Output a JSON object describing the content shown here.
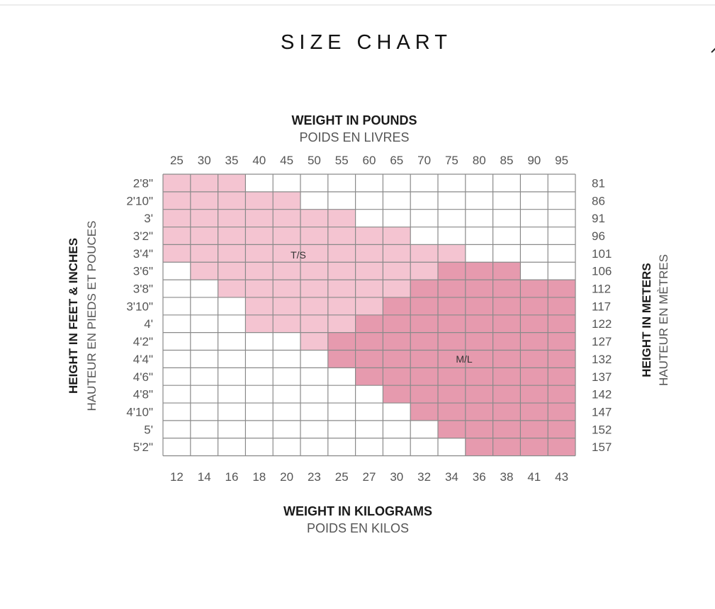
{
  "header": {
    "title": "SIZE CHART"
  },
  "chart_data": {
    "type": "heatmap",
    "title": "SIZE CHART",
    "top_axis": {
      "label": "WEIGHT IN POUNDS",
      "sublabel": "POIDS EN LIVRES",
      "ticks": [
        "25",
        "30",
        "35",
        "40",
        "45",
        "50",
        "55",
        "60",
        "65",
        "70",
        "75",
        "80",
        "85",
        "90",
        "95"
      ]
    },
    "bottom_axis": {
      "label": "WEIGHT IN KILOGRAMS",
      "sublabel": "POIDS EN KILOS",
      "ticks": [
        "12",
        "14",
        "16",
        "18",
        "20",
        "23",
        "25",
        "27",
        "30",
        "32",
        "34",
        "36",
        "38",
        "41",
        "43"
      ]
    },
    "left_axis": {
      "label": "HEIGHT IN FEET & INCHES",
      "sublabel": "HAUTEUR EN PIEDS ET POUCES",
      "ticks": [
        "2'8\"",
        "2'10\"",
        "3'",
        "3'2\"",
        "3'4\"",
        "3'6\"",
        "3'8\"",
        "3'10\"",
        "4'",
        "4'2\"",
        "4'4\"",
        "4'6\"",
        "4'8\"",
        "4'10\"",
        "5'",
        "5'2\""
      ]
    },
    "right_axis": {
      "label": "HEIGHT IN METERS",
      "sublabel": "HAUTEUR EN MÈTRES",
      "ticks": [
        "81",
        "86",
        "91",
        "96",
        "101",
        "106",
        "112",
        "117",
        "122",
        "127",
        "132",
        "137",
        "142",
        "147",
        "152",
        "157"
      ]
    },
    "sizes": [
      {
        "label": "T/S",
        "color": "#f4c4d1"
      },
      {
        "label": "M/L",
        "color": "#e69aae"
      }
    ],
    "rows": [
      {
        "ts": [
          0,
          2
        ],
        "ml": null
      },
      {
        "ts": [
          0,
          4
        ],
        "ml": null
      },
      {
        "ts": [
          0,
          6
        ],
        "ml": null
      },
      {
        "ts": [
          0,
          8
        ],
        "ml": null
      },
      {
        "ts": [
          0,
          10
        ],
        "ml": null
      },
      {
        "ts": [
          1,
          9
        ],
        "ml": [
          10,
          12
        ]
      },
      {
        "ts": [
          2,
          8
        ],
        "ml": [
          9,
          14
        ]
      },
      {
        "ts": [
          3,
          7
        ],
        "ml": [
          8,
          14
        ]
      },
      {
        "ts": [
          3,
          6
        ],
        "ml": [
          7,
          14
        ]
      },
      {
        "ts": [
          5,
          5
        ],
        "ml": [
          6,
          14
        ]
      },
      {
        "ts": null,
        "ml": [
          6,
          14
        ]
      },
      {
        "ts": null,
        "ml": [
          7,
          14
        ]
      },
      {
        "ts": null,
        "ml": [
          8,
          14
        ]
      },
      {
        "ts": null,
        "ml": [
          9,
          14
        ]
      },
      {
        "ts": null,
        "ml": [
          10,
          14
        ]
      },
      {
        "ts": null,
        "ml": [
          11,
          14
        ]
      }
    ],
    "grid": true
  }
}
